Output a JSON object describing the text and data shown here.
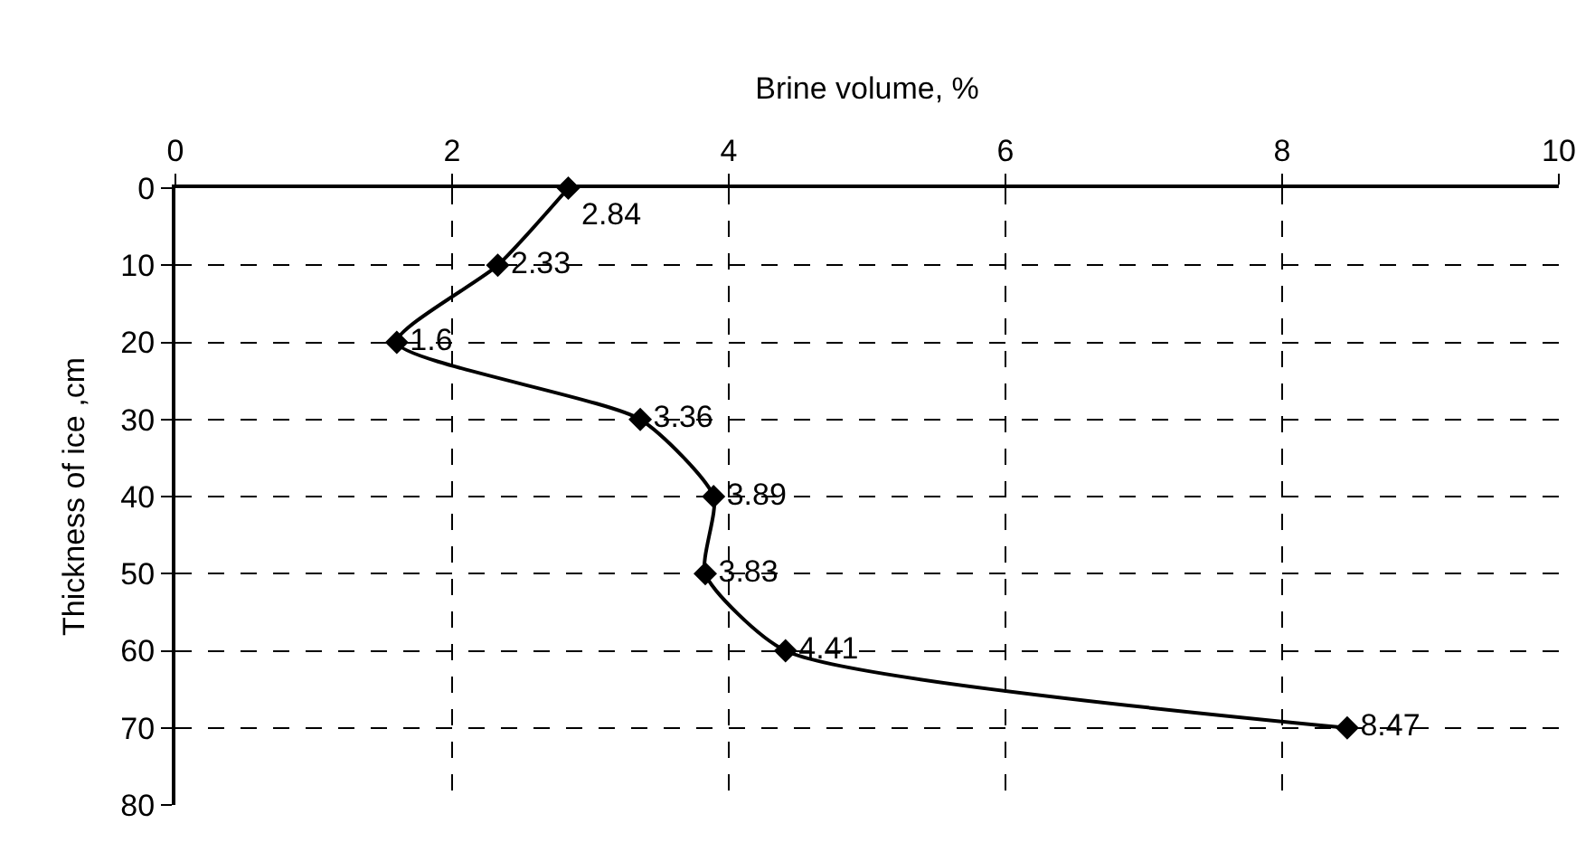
{
  "chart_data": {
    "type": "line",
    "orientation": "horizontal",
    "xlabel": "Brine volume, %",
    "ylabel": "Thickness of ice ,cm",
    "x": [
      0,
      10,
      20,
      30,
      40,
      50,
      60,
      70
    ],
    "series": [
      {
        "color": "#000000",
        "values": [
          2.84,
          2.33,
          1.6,
          3.36,
          3.89,
          3.83,
          4.41,
          8.47
        ]
      }
    ],
    "data_labels": true,
    "xlim": [
      0,
      10
    ],
    "xticks": [
      0,
      2,
      4,
      6,
      8,
      10
    ],
    "ylim": [
      80,
      0
    ],
    "yticks": [
      0,
      10,
      20,
      30,
      40,
      50,
      60,
      70,
      80
    ],
    "grid": true,
    "marker": "diamond",
    "line_style": "solid"
  }
}
